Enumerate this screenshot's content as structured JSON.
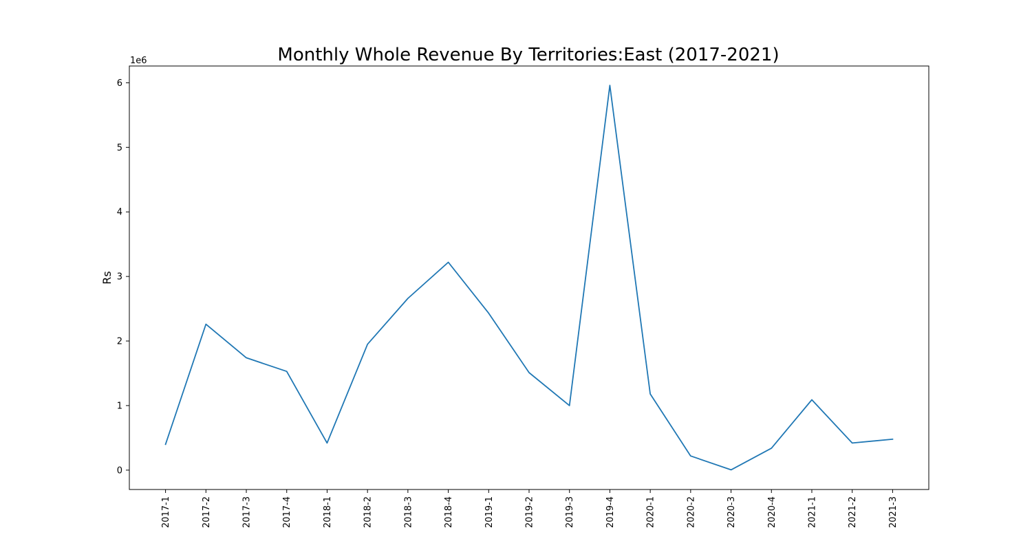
{
  "chart_data": {
    "type": "line",
    "title": "Monthly Whole Revenue By Territories:East (2017-2021)",
    "xlabel": "",
    "ylabel": "Rs",
    "y_scale_label": "1e6",
    "categories": [
      "2017-1",
      "2017-2",
      "2017-3",
      "2017-4",
      "2018-1",
      "2018-2",
      "2018-3",
      "2018-4",
      "2019-1",
      "2019-2",
      "2019-3",
      "2019-4",
      "2020-1",
      "2020-2",
      "2020-3",
      "2020-4",
      "2021-1",
      "2021-2",
      "2021-3"
    ],
    "values": [
      400000,
      2260000,
      1740000,
      1530000,
      420000,
      1950000,
      2660000,
      3220000,
      2430000,
      1510000,
      1000000,
      5960000,
      1180000,
      220000,
      5000,
      340000,
      1090000,
      420000,
      480000
    ],
    "ylim": [
      -300000,
      6260000
    ],
    "yticks": [
      0,
      1,
      2,
      3,
      4,
      5,
      6
    ],
    "grid": false,
    "legend": "none",
    "line_color": "#1f77b4"
  }
}
